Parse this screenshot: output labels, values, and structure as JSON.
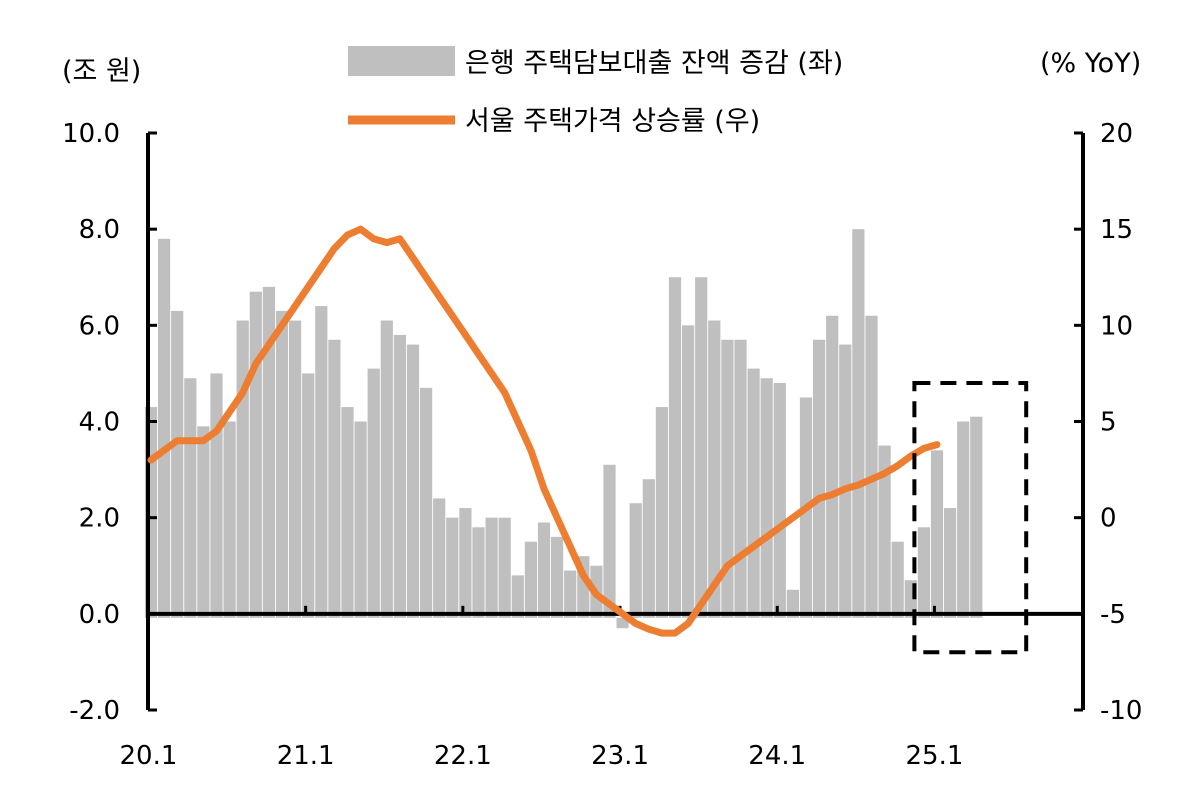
{
  "chart_data": {
    "type": "bar+line",
    "y_left_unit": "(조 원)",
    "y_right_unit": "(% YoY)",
    "legend_position": "top-center",
    "legend": [
      {
        "label": "은행 주택담보대출 잔액 증감 (좌)",
        "color": "#bfbfbf",
        "kind": "bar"
      },
      {
        "label": "서울 주택가격 상승률 (우)",
        "color": "#ed7d31",
        "kind": "line"
      }
    ],
    "y_left": {
      "min": -2,
      "max": 10,
      "ticks": [
        "-2.0",
        "0.0",
        "2.0",
        "4.0",
        "6.0",
        "8.0",
        "10.0"
      ]
    },
    "y_right": {
      "min": -10,
      "max": 20,
      "ticks": [
        "-10",
        "-5",
        "0",
        "5",
        "10",
        "15",
        "20"
      ]
    },
    "x_tick_labels": [
      {
        "label": "20.1",
        "month_index": 0
      },
      {
        "label": "21.1",
        "month_index": 12
      },
      {
        "label": "22.1",
        "month_index": 24
      },
      {
        "label": "23.1",
        "month_index": 36
      },
      {
        "label": "24.1",
        "month_index": 48
      },
      {
        "label": "25.1",
        "month_index": 60
      }
    ],
    "highlight_box": {
      "from_month_index": 59,
      "to_month_index": 66,
      "style": "dashed",
      "y_top": 4.8,
      "y_bottom": -0.8
    },
    "bar_series": {
      "name": "은행 주택담보대출 잔액 증감 (좌)",
      "values": [
        4.3,
        7.8,
        6.3,
        4.9,
        3.9,
        5.0,
        4.0,
        6.1,
        6.7,
        6.8,
        6.3,
        6.1,
        5.0,
        6.4,
        5.7,
        4.3,
        4.0,
        5.1,
        6.1,
        5.8,
        5.6,
        4.7,
        2.4,
        2.0,
        2.2,
        1.8,
        2.0,
        2.0,
        0.8,
        1.5,
        1.9,
        1.6,
        0.9,
        1.2,
        1.0,
        3.1,
        -0.3,
        2.3,
        2.8,
        4.3,
        7.0,
        6.0,
        7.0,
        6.1,
        5.7,
        5.7,
        5.1,
        4.9,
        4.8,
        0.5,
        4.5,
        5.7,
        6.2,
        5.6,
        8.0,
        6.2,
        3.5,
        1.5,
        0.7,
        1.8,
        3.4,
        2.2,
        4.0,
        4.1
      ]
    },
    "line_series": {
      "name": "서울 주택가격 상승률 (우)",
      "values": [
        3.0,
        3.5,
        4.0,
        4.0,
        4.0,
        4.5,
        5.5,
        6.5,
        8.0,
        9.0,
        10.0,
        11.0,
        12.0,
        13.0,
        14.0,
        14.7,
        15.0,
        14.5,
        14.3,
        14.5,
        13.5,
        12.5,
        11.5,
        10.5,
        9.5,
        8.5,
        7.5,
        6.5,
        5.0,
        3.5,
        1.5,
        0.0,
        -1.5,
        -3.0,
        -4.0,
        -4.5,
        -5.0,
        -5.5,
        -5.8,
        -6.0,
        -6.0,
        -5.5,
        -4.5,
        -3.5,
        -2.5,
        -2.0,
        -1.5,
        -1.0,
        -0.5,
        0.0,
        0.5,
        1.0,
        1.2,
        1.5,
        1.7,
        2.0,
        2.3,
        2.7,
        3.2,
        3.6,
        3.8
      ]
    }
  }
}
